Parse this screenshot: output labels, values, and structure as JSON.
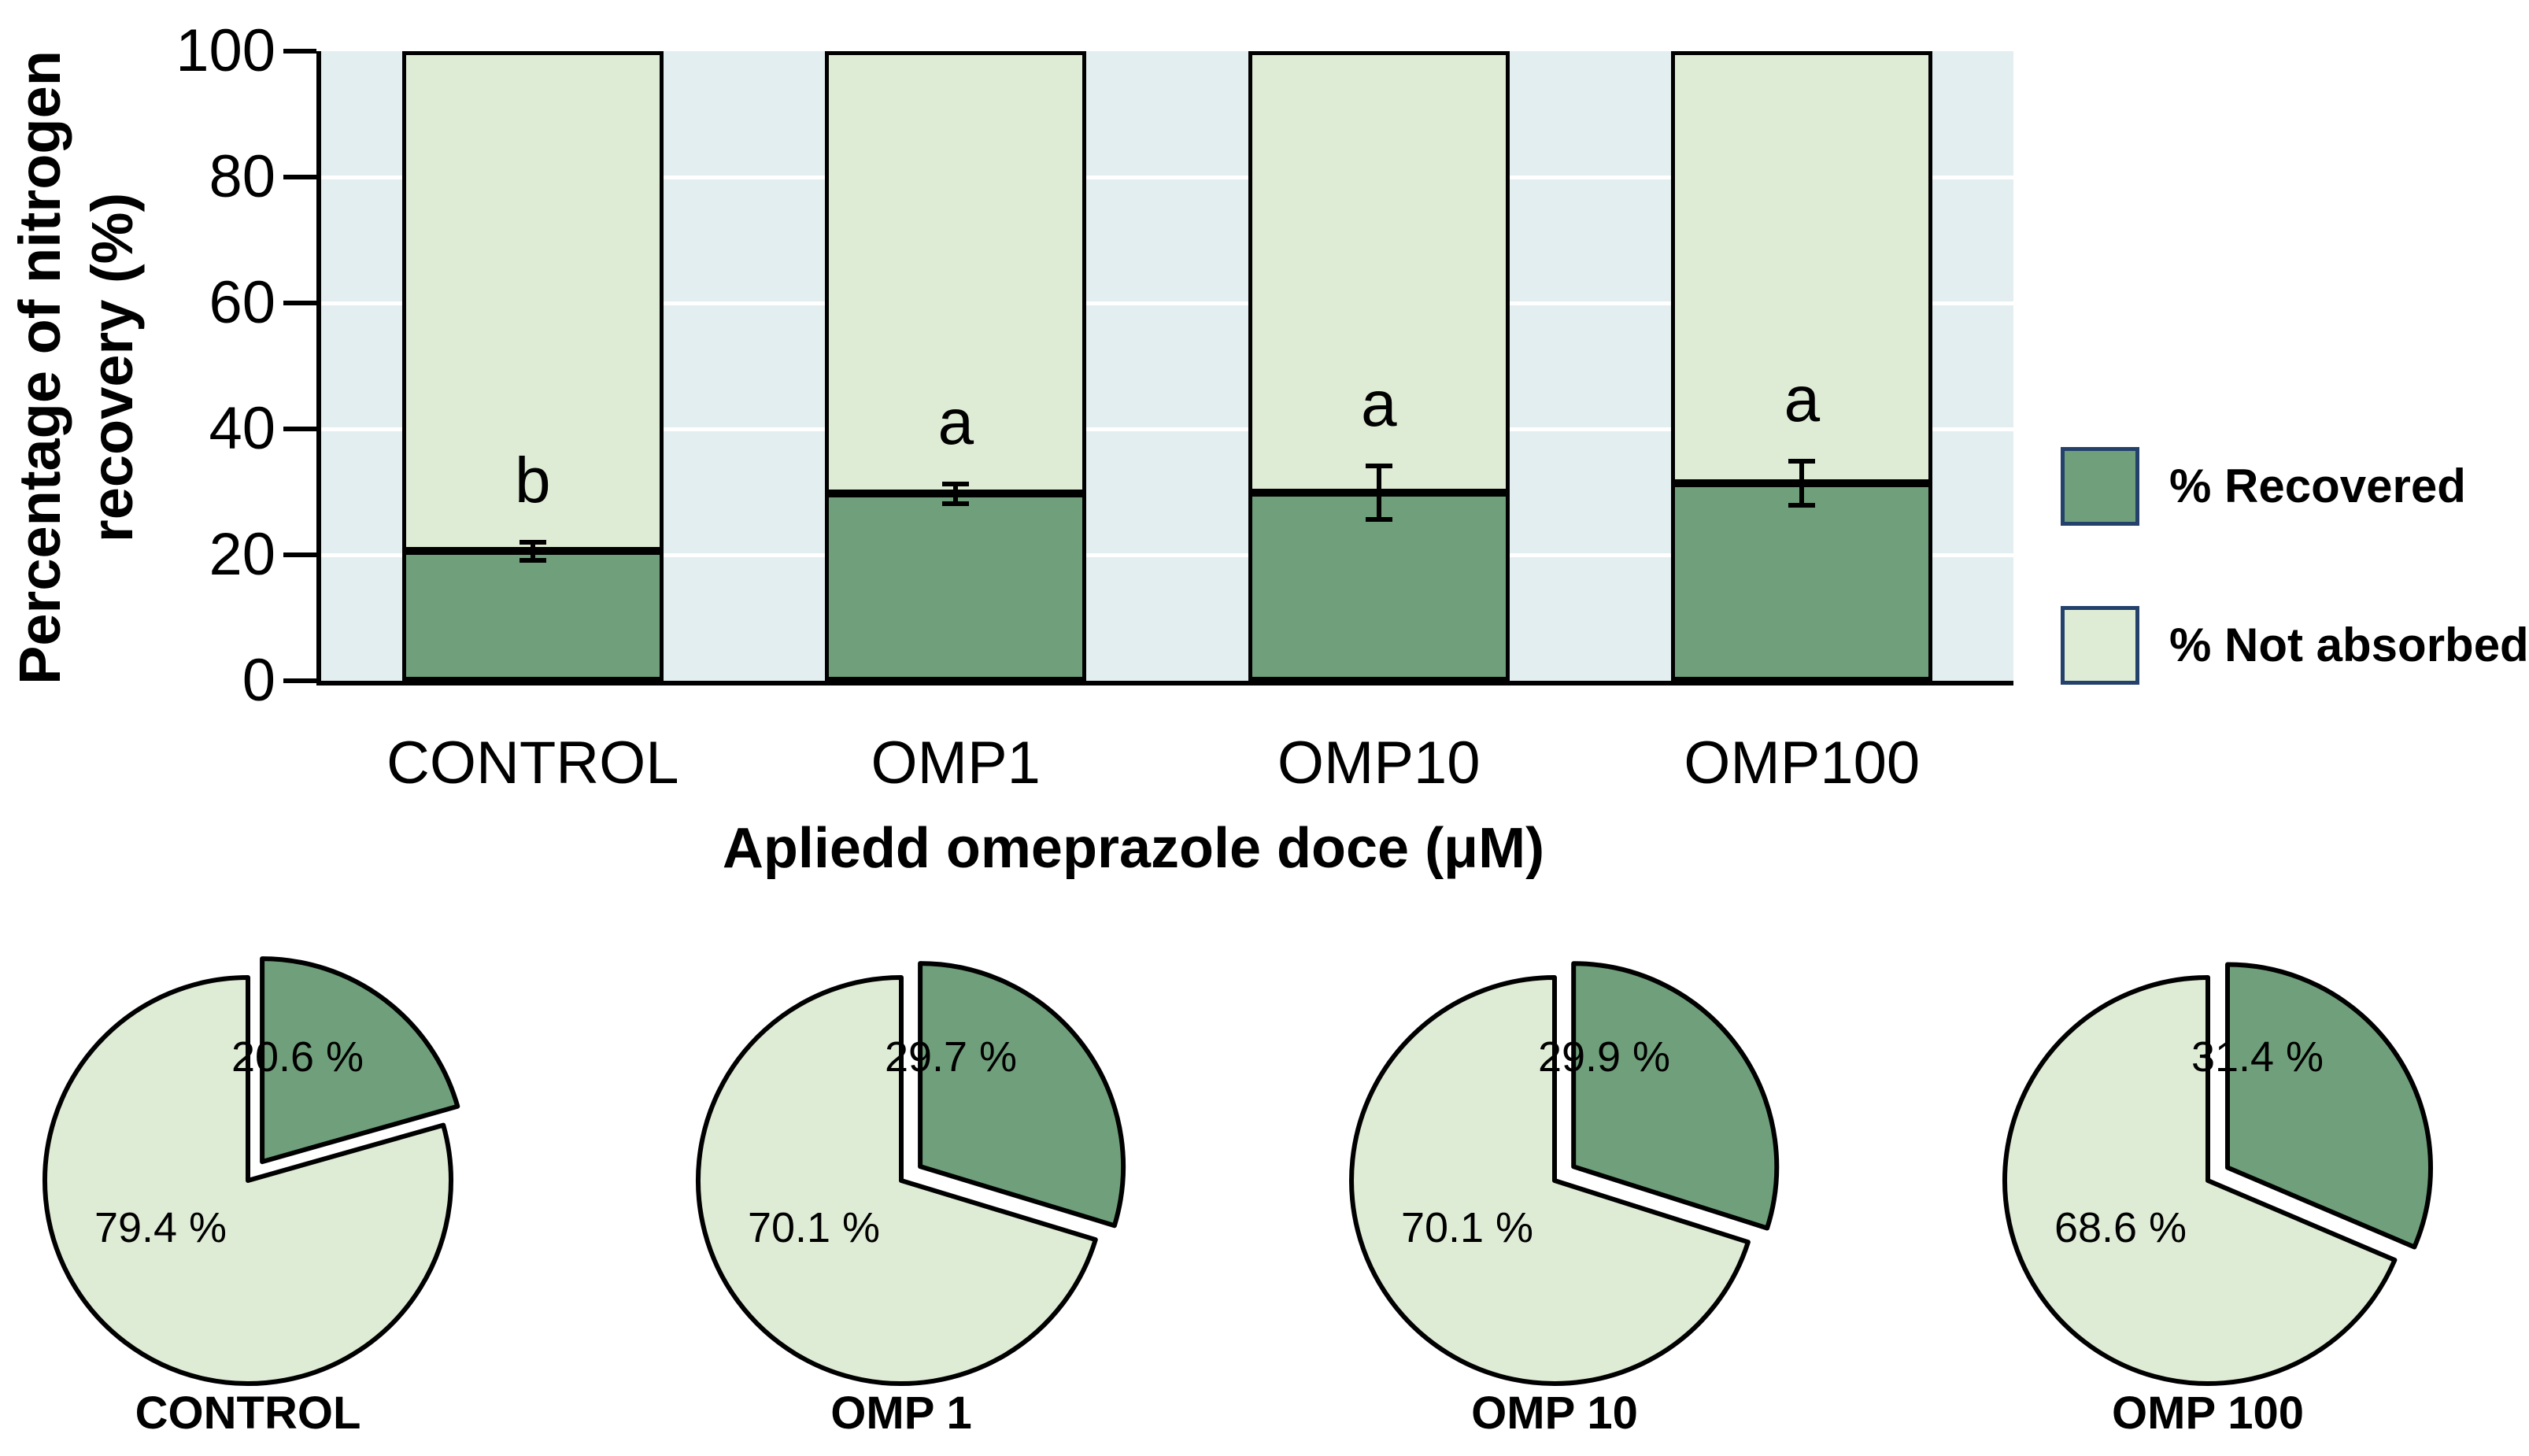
{
  "figure": {
    "colors": {
      "recovered": "#70A07B",
      "not_absorbed": "#DFECD5",
      "plot_background": "#E3EEF0",
      "gridline": "#FFFFFF",
      "outline": "#000000",
      "legend_swatch_border": "#24416B"
    }
  },
  "bar_chart": {
    "ylabel_line1": "Percentage of nitrogen",
    "ylabel_line2": "recovery (%)",
    "xlabel": "Apliedd omeprazole doce (μM)"
  },
  "legend": {
    "items": [
      {
        "label": "% Recovered",
        "color": "#70A07B"
      },
      {
        "label": "% Not absorbed",
        "color": "#DFECD5"
      }
    ]
  },
  "chart_data": [
    {
      "type": "bar",
      "subtype": "stacked",
      "categories": [
        "CONTROL",
        "OMP1",
        "OMP10",
        "OMP100"
      ],
      "series": [
        {
          "name": "% Recovered",
          "color": "#70A07B",
          "values": [
            20.6,
            29.7,
            29.9,
            31.4
          ]
        },
        {
          "name": "% Not absorbed",
          "color": "#DFECD5",
          "values": [
            79.4,
            70.1,
            70.1,
            68.6
          ]
        }
      ],
      "error_bars": {
        "on_series": "% Recovered",
        "plus_minus": [
          1.8,
          1.9,
          4.6,
          3.9
        ]
      },
      "sig_letters": [
        "b",
        "a",
        "a",
        "a"
      ],
      "title": "",
      "xlabel": "Apliedd omeprazole doce (μM)",
      "ylabel": "Percentage of nitrogen recovery (%)",
      "ylim": [
        0,
        100
      ],
      "y_ticks": [
        0,
        20,
        40,
        60,
        80,
        100
      ],
      "grid": true,
      "legend_position": "right"
    },
    {
      "type": "pie",
      "pies": [
        {
          "caption": "CONTROL",
          "slices": [
            {
              "name": "% Recovered",
              "value": 20.6,
              "text": "20.6 %",
              "exploded": true
            },
            {
              "name": "% Not absorbed",
              "value": 79.4,
              "text": "79.4 %",
              "exploded": false
            }
          ]
        },
        {
          "caption": "OMP 1",
          "slices": [
            {
              "name": "% Recovered",
              "value": 29.7,
              "text": "29.7 %",
              "exploded": true
            },
            {
              "name": "% Not absorbed",
              "value": 70.1,
              "text": "70.1 %",
              "exploded": false
            }
          ]
        },
        {
          "caption": "OMP 10",
          "slices": [
            {
              "name": "% Recovered",
              "value": 29.9,
              "text": "29.9 %",
              "exploded": true
            },
            {
              "name": "% Not absorbed",
              "value": 70.1,
              "text": "70.1 %",
              "exploded": false
            }
          ]
        },
        {
          "caption": "OMP 100",
          "slices": [
            {
              "name": "% Recovered",
              "value": 31.4,
              "text": "31.4 %",
              "exploded": true
            },
            {
              "name": "% Not absorbed",
              "value": 68.6,
              "text": "68.6 %",
              "exploded": false
            }
          ]
        }
      ]
    }
  ]
}
